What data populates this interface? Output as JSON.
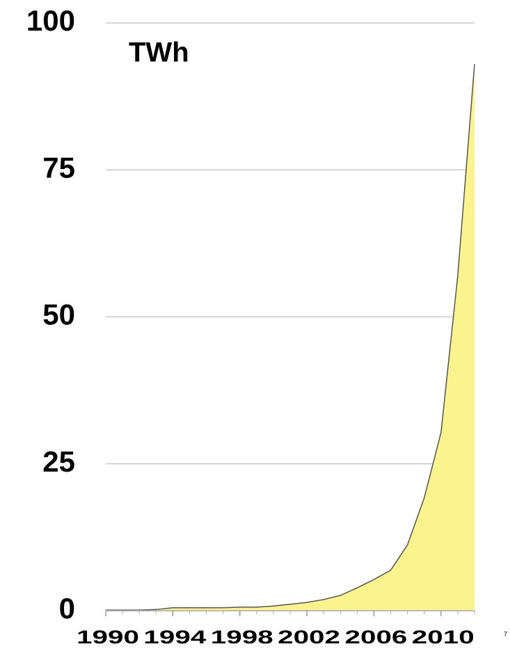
{
  "chart_data": {
    "type": "area",
    "unit_label": "TWh",
    "page_number": "7",
    "x": [
      1990,
      1991,
      1992,
      1993,
      1994,
      1995,
      1996,
      1997,
      1998,
      1999,
      2000,
      2001,
      2002,
      2003,
      2004,
      2005,
      2006,
      2007,
      2008,
      2009,
      2010,
      2011,
      2012
    ],
    "values": [
      0.1,
      0.1,
      0.1,
      0.2,
      0.5,
      0.5,
      0.5,
      0.5,
      0.6,
      0.6,
      0.8,
      1.1,
      1.4,
      1.9,
      2.6,
      3.9,
      5.3,
      6.9,
      11.2,
      19.2,
      30.3,
      57,
      93
    ],
    "color": "#fbf38c",
    "line_color": "#555555",
    "xlim": [
      1990,
      2012
    ],
    "xticks": [
      1990,
      1994,
      1998,
      2002,
      2006,
      2010
    ],
    "ylim": [
      0,
      100
    ],
    "yticks": [
      0,
      25,
      50,
      75,
      100
    ],
    "grid": true
  }
}
